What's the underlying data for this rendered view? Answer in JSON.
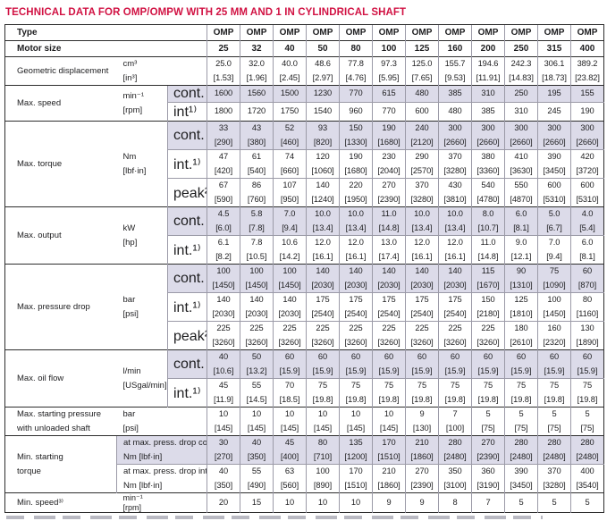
{
  "title": "TECHNICAL DATA FOR OMP/OMPW WITH 25 MM AND 1 IN CYLINDRICAL SHAFT",
  "colors": {
    "title_accent": "#d11243",
    "row_highlight": "#dcdbe9",
    "grid_line": "#9b9aa7",
    "frame_dark": "#2d2d2d",
    "text": "#1d1d1f",
    "background": "#ffffff"
  },
  "table": {
    "type_label": "Type",
    "columns": [
      "OMP",
      "OMP",
      "OMP",
      "OMP",
      "OMP",
      "OMP",
      "OMP",
      "OMP",
      "OMP",
      "OMP",
      "OMP",
      "OMP"
    ],
    "motor_size_label": "Motor size",
    "motor_sizes": [
      "25",
      "32",
      "40",
      "50",
      "80",
      "100",
      "125",
      "160",
      "200",
      "250",
      "315",
      "400"
    ],
    "groups": [
      {
        "label_lines": [
          "Geometric displacement"
        ],
        "unit_lines": [
          "cm³",
          "[in³]"
        ],
        "subrows": [
          {
            "cond": null,
            "hl": false,
            "lines": [
              [
                "25.0",
                "32.0",
                "40.0",
                "48.6",
                "77.8",
                "97.3",
                "125.0",
                "155.7",
                "194.6",
                "242.3",
                "306.1",
                "389.2"
              ],
              [
                "[1.53]",
                "[1.96]",
                "[2.45]",
                "[2.97]",
                "[4.76]",
                "[5.95]",
                "[7.65]",
                "[9.53]",
                "[11.91]",
                "[14.83]",
                "[18.73]",
                "[23.82]"
              ]
            ]
          }
        ]
      },
      {
        "label_lines": [
          "Max. speed"
        ],
        "unit_lines": [
          "min⁻¹",
          "[rpm]"
        ],
        "subrows": [
          {
            "cond": "cont.",
            "hl": true,
            "lines": [
              [
                "1600",
                "1560",
                "1500",
                "1230",
                "770",
                "615",
                "480",
                "385",
                "310",
                "250",
                "195",
                "155"
              ]
            ]
          },
          {
            "cond": "int¹⁾",
            "hl": false,
            "lines": [
              [
                "1800",
                "1720",
                "1750",
                "1540",
                "960",
                "770",
                "600",
                "480",
                "385",
                "310",
                "245",
                "190"
              ]
            ]
          }
        ]
      },
      {
        "label_lines": [
          "Max. torque"
        ],
        "unit_lines": [
          "Nm",
          "[lbf·in]"
        ],
        "subrows": [
          {
            "cond": "cont.",
            "hl": true,
            "lines": [
              [
                "33",
                "43",
                "52",
                "93",
                "150",
                "190",
                "240",
                "300",
                "300",
                "300",
                "300",
                "300"
              ],
              [
                "[290]",
                "[380]",
                "[460]",
                "[820]",
                "[1330]",
                "[1680]",
                "[2120]",
                "[2660]",
                "[2660]",
                "[2660]",
                "[2660]",
                "[2660]"
              ]
            ]
          },
          {
            "cond": "int.¹⁾",
            "hl": false,
            "lines": [
              [
                "47",
                "61",
                "74",
                "120",
                "190",
                "230",
                "290",
                "370",
                "380",
                "410",
                "390",
                "420"
              ],
              [
                "[420]",
                "[540]",
                "[660]",
                "[1060]",
                "[1680]",
                "[2040]",
                "[2570]",
                "[3280]",
                "[3360]",
                "[3630]",
                "[3450]",
                "[3720]"
              ]
            ]
          },
          {
            "cond": "peak²⁾",
            "hl": false,
            "lines": [
              [
                "67",
                "86",
                "107",
                "140",
                "220",
                "270",
                "370",
                "430",
                "540",
                "550",
                "600",
                "600"
              ],
              [
                "[590]",
                "[760]",
                "[950]",
                "[1240]",
                "[1950]",
                "[2390]",
                "[3280]",
                "[3810]",
                "[4780]",
                "[4870]",
                "[5310]",
                "[5310]"
              ]
            ]
          }
        ]
      },
      {
        "label_lines": [
          "Max. output"
        ],
        "unit_lines": [
          "kW",
          "[hp]"
        ],
        "subrows": [
          {
            "cond": "cont.",
            "hl": true,
            "lines": [
              [
                "4.5",
                "5.8",
                "7.0",
                "10.0",
                "10.0",
                "11.0",
                "10.0",
                "10.0",
                "8.0",
                "6.0",
                "5.0",
                "4.0"
              ],
              [
                "[6.0]",
                "[7.8]",
                "[9.4]",
                "[13.4]",
                "[13.4]",
                "[14.8]",
                "[13.4]",
                "[13.4]",
                "[10.7]",
                "[8.1]",
                "[6.7]",
                "[5.4]"
              ]
            ]
          },
          {
            "cond": "int.¹⁾",
            "hl": false,
            "lines": [
              [
                "6.1",
                "7.8",
                "10.6",
                "12.0",
                "12.0",
                "13.0",
                "12.0",
                "12.0",
                "11.0",
                "9.0",
                "7.0",
                "6.0"
              ],
              [
                "[8.2]",
                "[10.5]",
                "[14.2]",
                "[16.1]",
                "[16.1]",
                "[17.4]",
                "[16.1]",
                "[16.1]",
                "[14.8]",
                "[12.1]",
                "[9.4]",
                "[8.1]"
              ]
            ]
          }
        ]
      },
      {
        "label_lines": [
          "Max. pressure drop"
        ],
        "unit_lines": [
          "bar",
          "[psi]"
        ],
        "subrows": [
          {
            "cond": "cont.",
            "hl": true,
            "lines": [
              [
                "100",
                "100",
                "100",
                "140",
                "140",
                "140",
                "140",
                "140",
                "115",
                "90",
                "75",
                "60"
              ],
              [
                "[1450]",
                "[1450]",
                "[1450]",
                "[2030]",
                "[2030]",
                "[2030]",
                "[2030]",
                "[2030]",
                "[1670]",
                "[1310]",
                "[1090]",
                "[870]"
              ]
            ]
          },
          {
            "cond": "int.¹⁾",
            "hl": false,
            "lines": [
              [
                "140",
                "140",
                "140",
                "175",
                "175",
                "175",
                "175",
                "175",
                "150",
                "125",
                "100",
                "80"
              ],
              [
                "[2030]",
                "[2030]",
                "[2030]",
                "[2540]",
                "[2540]",
                "[2540]",
                "[2540]",
                "[2540]",
                "[2180]",
                "[1810]",
                "[1450]",
                "[1160]"
              ]
            ]
          },
          {
            "cond": "peak²⁾",
            "hl": false,
            "lines": [
              [
                "225",
                "225",
                "225",
                "225",
                "225",
                "225",
                "225",
                "225",
                "225",
                "180",
                "160",
                "130"
              ],
              [
                "[3260]",
                "[3260]",
                "[3260]",
                "[3260]",
                "[3260]",
                "[3260]",
                "[3260]",
                "[3260]",
                "[3260]",
                "[2610]",
                "[2320]",
                "[1890]"
              ]
            ]
          }
        ]
      },
      {
        "label_lines": [
          "Max. oil flow"
        ],
        "unit_lines": [
          "l/min",
          "[USgal/min]"
        ],
        "subrows": [
          {
            "cond": "cont.",
            "hl": true,
            "lines": [
              [
                "40",
                "50",
                "60",
                "60",
                "60",
                "60",
                "60",
                "60",
                "60",
                "60",
                "60",
                "60"
              ],
              [
                "[10.6]",
                "[13.2]",
                "[15.9]",
                "[15.9]",
                "[15.9]",
                "[15.9]",
                "[15.9]",
                "[15.9]",
                "[15.9]",
                "[15.9]",
                "[15.9]",
                "[15.9]"
              ]
            ]
          },
          {
            "cond": "int.¹⁾",
            "hl": false,
            "lines": [
              [
                "45",
                "55",
                "70",
                "75",
                "75",
                "75",
                "75",
                "75",
                "75",
                "75",
                "75",
                "75"
              ],
              [
                "[11.9]",
                "[14.5]",
                "[18.5]",
                "[19.8]",
                "[19.8]",
                "[19.8]",
                "[19.8]",
                "[19.8]",
                "[19.8]",
                "[19.8]",
                "[19.8]",
                "[19.8]"
              ]
            ]
          }
        ]
      },
      {
        "label_lines": [
          "Max. starting pressure",
          "with unloaded shaft"
        ],
        "unit_lines": [
          "bar",
          "[psi]"
        ],
        "subrows": [
          {
            "cond": null,
            "hl": false,
            "lines": [
              [
                "10",
                "10",
                "10",
                "10",
                "10",
                "10",
                "9",
                "7",
                "5",
                "5",
                "5",
                "5"
              ],
              [
                "[145]",
                "[145]",
                "[145]",
                "[145]",
                "[145]",
                "[145]",
                "[130]",
                "[100]",
                "[75]",
                "[75]",
                "[75]",
                "[75]"
              ]
            ]
          }
        ]
      },
      {
        "label_lines": [
          "Min. starting",
          "torque"
        ],
        "subrows": [
          {
            "wide_cond": [
              "at max. press. drop cont.",
              "Nm [lbf·in]"
            ],
            "hl": true,
            "lines": [
              [
                "30",
                "40",
                "45",
                "80",
                "135",
                "170",
                "210",
                "280",
                "270",
                "280",
                "280",
                "280"
              ],
              [
                "[270]",
                "[350]",
                "[400]",
                "[710]",
                "[1200]",
                "[1510]",
                "[1860]",
                "[2480]",
                "[2390]",
                "[2480]",
                "[2480]",
                "[2480]"
              ]
            ]
          },
          {
            "wide_cond": [
              "at max. press. drop int.¹⁾",
              "Nm [lbf·in]"
            ],
            "hl": false,
            "lines": [
              [
                "40",
                "55",
                "63",
                "100",
                "170",
                "210",
                "270",
                "350",
                "360",
                "390",
                "370",
                "400"
              ],
              [
                "[350]",
                "[490]",
                "[560]",
                "[890]",
                "[1510]",
                "[1860]",
                "[2390]",
                "[3100]",
                "[3190]",
                "[3450]",
                "[3280]",
                "[3540]"
              ]
            ]
          }
        ]
      },
      {
        "label_lines": [
          "Min. speed³⁾"
        ],
        "unit_lines": [
          "min⁻¹",
          "[rpm]"
        ],
        "subrows": [
          {
            "cond": null,
            "hl": false,
            "lines": [
              [
                "20",
                "15",
                "10",
                "10",
                "10",
                "9",
                "9",
                "8",
                "7",
                "5",
                "5",
                "5"
              ]
            ]
          }
        ]
      }
    ]
  }
}
